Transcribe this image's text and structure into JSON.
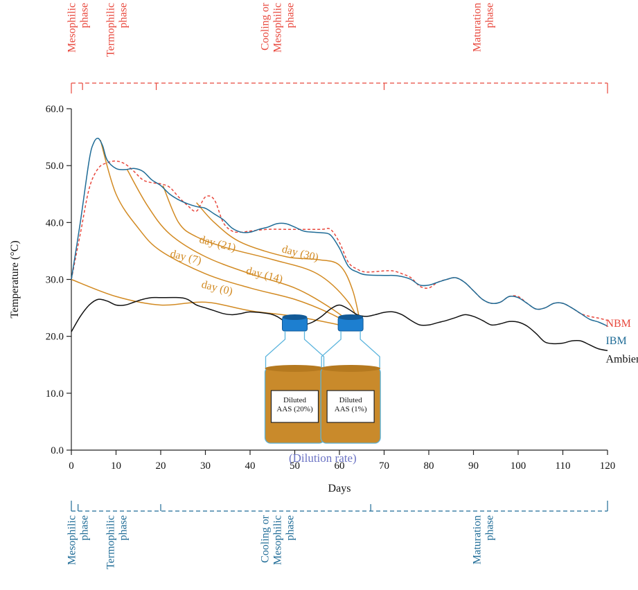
{
  "chart_data": {
    "type": "line",
    "xlabel": "Days",
    "ylabel": "Temperature (°C)",
    "xlim": [
      0,
      120
    ],
    "ylim": [
      0,
      60
    ],
    "x_ticks": [
      0,
      10,
      20,
      30,
      40,
      50,
      60,
      70,
      80,
      90,
      100,
      110,
      120
    ],
    "x_tick_labels": [
      "0",
      "10",
      "20",
      "30",
      "40",
      "50",
      "60",
      "70",
      "80",
      "90",
      "100",
      "110",
      "120"
    ],
    "y_ticks": [
      0,
      10,
      20,
      30,
      40,
      50,
      60
    ],
    "y_tick_labels": [
      "0.0",
      "10.0",
      "20.0",
      "30.0",
      "40.0",
      "50.0",
      "60.0"
    ],
    "grid": false,
    "series": [
      {
        "name": "NBM",
        "color": "#e8473c",
        "style": "dashed",
        "points": [
          [
            0,
            30
          ],
          [
            2,
            38
          ],
          [
            4,
            46
          ],
          [
            6,
            49.5
          ],
          [
            8,
            50.5
          ],
          [
            10,
            50.8
          ],
          [
            12,
            50.3
          ],
          [
            14,
            49
          ],
          [
            16,
            47.5
          ],
          [
            18,
            47
          ],
          [
            20,
            46.8
          ],
          [
            22,
            46.2
          ],
          [
            24,
            44.5
          ],
          [
            26,
            43
          ],
          [
            28,
            42
          ],
          [
            30,
            44.5
          ],
          [
            32,
            44
          ],
          [
            34,
            40
          ],
          [
            36,
            38.5
          ],
          [
            38,
            38.3
          ],
          [
            40,
            38.5
          ],
          [
            44,
            38.8
          ],
          [
            48,
            38.8
          ],
          [
            52,
            38.8
          ],
          [
            56,
            38.8
          ],
          [
            58,
            38.8
          ],
          [
            60,
            36.5
          ],
          [
            62,
            33
          ],
          [
            64,
            31.8
          ],
          [
            66,
            31.3
          ],
          [
            70,
            31.5
          ],
          [
            72,
            31.5
          ],
          [
            74,
            31
          ],
          [
            76,
            30.3
          ],
          [
            78,
            28.8
          ],
          [
            80,
            28.5
          ],
          [
            82,
            29.5
          ],
          [
            84,
            30
          ],
          [
            86,
            30.3
          ],
          [
            88,
            29.5
          ],
          [
            90,
            28
          ],
          [
            92,
            26.5
          ],
          [
            94,
            25.8
          ],
          [
            96,
            26
          ],
          [
            98,
            27
          ],
          [
            100,
            27
          ],
          [
            102,
            25.8
          ],
          [
            104,
            24.8
          ],
          [
            106,
            25
          ],
          [
            108,
            25.8
          ],
          [
            110,
            25.8
          ],
          [
            112,
            25
          ],
          [
            114,
            24
          ],
          [
            116,
            23.5
          ],
          [
            118,
            23.2
          ],
          [
            120,
            22.8
          ]
        ]
      },
      {
        "name": "IBM",
        "color": "#1e6b96",
        "style": "solid",
        "points": [
          [
            0,
            30
          ],
          [
            2,
            40
          ],
          [
            4,
            51
          ],
          [
            5,
            54
          ],
          [
            6,
            54.8
          ],
          [
            7,
            53.5
          ],
          [
            8,
            51
          ],
          [
            10,
            49.5
          ],
          [
            12,
            49.3
          ],
          [
            14,
            49.5
          ],
          [
            16,
            49
          ],
          [
            18,
            47.5
          ],
          [
            20,
            46.5
          ],
          [
            22,
            45
          ],
          [
            24,
            44
          ],
          [
            26,
            43.3
          ],
          [
            28,
            42.8
          ],
          [
            30,
            42.5
          ],
          [
            32,
            41.5
          ],
          [
            34,
            40.5
          ],
          [
            36,
            39
          ],
          [
            38,
            38.3
          ],
          [
            40,
            38.3
          ],
          [
            42,
            38.8
          ],
          [
            44,
            39.2
          ],
          [
            46,
            39.8
          ],
          [
            48,
            39.8
          ],
          [
            50,
            39.2
          ],
          [
            52,
            38.5
          ],
          [
            54,
            38.3
          ],
          [
            56,
            38.2
          ],
          [
            58,
            37.8
          ],
          [
            60,
            35.5
          ],
          [
            62,
            32.3
          ],
          [
            64,
            31.3
          ],
          [
            66,
            30.8
          ],
          [
            70,
            30.7
          ],
          [
            72,
            30.7
          ],
          [
            74,
            30.5
          ],
          [
            76,
            30
          ],
          [
            78,
            29
          ],
          [
            80,
            29
          ],
          [
            82,
            29.5
          ],
          [
            84,
            30
          ],
          [
            86,
            30.3
          ],
          [
            88,
            29.5
          ],
          [
            90,
            28
          ],
          [
            92,
            26.5
          ],
          [
            94,
            25.8
          ],
          [
            96,
            26
          ],
          [
            98,
            27
          ],
          [
            100,
            26.8
          ],
          [
            102,
            25.8
          ],
          [
            104,
            24.8
          ],
          [
            106,
            25
          ],
          [
            108,
            25.8
          ],
          [
            110,
            25.8
          ],
          [
            112,
            25
          ],
          [
            114,
            24
          ],
          [
            116,
            23
          ],
          [
            118,
            22.5
          ],
          [
            120,
            21.8
          ]
        ]
      },
      {
        "name": "Ambient",
        "color": "#111111",
        "style": "solid",
        "points": [
          [
            0,
            20.8
          ],
          [
            2,
            23.5
          ],
          [
            4,
            25.5
          ],
          [
            6,
            26.5
          ],
          [
            8,
            26.2
          ],
          [
            10,
            25.5
          ],
          [
            12,
            25.5
          ],
          [
            14,
            26
          ],
          [
            16,
            26.5
          ],
          [
            18,
            26.8
          ],
          [
            20,
            26.8
          ],
          [
            24,
            26.8
          ],
          [
            26,
            26.5
          ],
          [
            28,
            25.5
          ],
          [
            30,
            25
          ],
          [
            32,
            24.5
          ],
          [
            34,
            24
          ],
          [
            36,
            23.8
          ],
          [
            38,
            24
          ],
          [
            40,
            24.3
          ],
          [
            44,
            24
          ],
          [
            46,
            23.5
          ],
          [
            48,
            22.5
          ],
          [
            50,
            22
          ],
          [
            52,
            22
          ],
          [
            54,
            22.5
          ],
          [
            56,
            23.5
          ],
          [
            58,
            24.8
          ],
          [
            60,
            25.5
          ],
          [
            62,
            24.8
          ],
          [
            64,
            23.8
          ],
          [
            66,
            23.5
          ],
          [
            68,
            23.8
          ],
          [
            70,
            24.2
          ],
          [
            72,
            24.3
          ],
          [
            74,
            23.8
          ],
          [
            76,
            22.8
          ],
          [
            78,
            22
          ],
          [
            80,
            22
          ],
          [
            82,
            22.4
          ],
          [
            84,
            22.8
          ],
          [
            86,
            23.3
          ],
          [
            88,
            23.8
          ],
          [
            90,
            23.5
          ],
          [
            92,
            22.8
          ],
          [
            94,
            22
          ],
          [
            96,
            22.2
          ],
          [
            98,
            22.6
          ],
          [
            100,
            22.5
          ],
          [
            102,
            21.8
          ],
          [
            104,
            20.5
          ],
          [
            106,
            19
          ],
          [
            108,
            18.7
          ],
          [
            110,
            18.8
          ],
          [
            112,
            19.2
          ],
          [
            114,
            19.2
          ],
          [
            116,
            18.5
          ],
          [
            118,
            17.8
          ],
          [
            120,
            17.5
          ]
        ]
      }
    ],
    "sample_lines": {
      "color": "#d28a22",
      "target": [
        65,
        21
      ],
      "lines": [
        {
          "label": "day (0)",
          "points": [
            [
              0,
              30
            ],
            [
              10,
              27
            ],
            [
              20,
              25.5
            ],
            [
              30,
              26
            ],
            [
              40,
              24.5
            ],
            [
              50,
              23.5
            ],
            [
              60,
              22
            ],
            [
              65,
              21
            ]
          ],
          "label_at": [
            29,
            28.6
          ]
        },
        {
          "label": "day (7)",
          "points": [
            [
              6.5,
              54.5
            ],
            [
              10,
              45
            ],
            [
              15,
              39
            ],
            [
              20,
              35
            ],
            [
              30,
              31
            ],
            [
              40,
              28.5
            ],
            [
              50,
              26.5
            ],
            [
              58,
              24
            ],
            [
              65,
              21
            ]
          ],
          "label_at": [
            22,
            34
          ]
        },
        {
          "label": "day (14)",
          "points": [
            [
              12.5,
              49.3
            ],
            [
              17,
              43
            ],
            [
              22,
              38
            ],
            [
              30,
              34
            ],
            [
              40,
              31
            ],
            [
              50,
              28.5
            ],
            [
              58,
              25
            ],
            [
              65,
              21
            ]
          ],
          "label_at": [
            39,
            31
          ]
        },
        {
          "label": "day (21)",
          "points": [
            [
              20.5,
              46.5
            ],
            [
              24,
              40
            ],
            [
              28,
              37.5
            ],
            [
              35,
              35.5
            ],
            [
              45,
              33.5
            ],
            [
              55,
              31
            ],
            [
              62,
              26
            ],
            [
              65,
              21
            ]
          ],
          "label_at": [
            28.5,
            36.5
          ]
        },
        {
          "label": "day (30)",
          "points": [
            [
              28,
              43.5
            ],
            [
              32,
              40
            ],
            [
              38,
              36.5
            ],
            [
              48,
              34
            ],
            [
              55,
              33.5
            ],
            [
              60,
              32.5
            ],
            [
              63,
              28
            ],
            [
              65,
              21
            ]
          ],
          "label_at": [
            47,
            34.8
          ]
        }
      ]
    },
    "end_labels": [
      {
        "text": "NBM",
        "color": "#e8473c",
        "at": [
          121,
          22.3
        ]
      },
      {
        "text": "IBM",
        "color": "#1e6b96",
        "at": [
          121,
          19.2
        ]
      },
      {
        "text": "Ambient",
        "color": "#111111",
        "at": [
          121,
          16
        ]
      }
    ],
    "top_phases": {
      "color": "#e8473c",
      "boundaries": [
        0,
        2.5,
        19,
        70,
        120
      ],
      "labels": [
        {
          "text": [
            "Mesophilic",
            "phase"
          ],
          "center": 1.3
        },
        {
          "text": [
            "Termophilic",
            "phase"
          ],
          "center": 10
        },
        {
          "text": [
            "Cooling or",
            "Mesophilic",
            "phase"
          ],
          "center": 46
        },
        {
          "text": [
            "Maturation",
            "phase"
          ],
          "center": 92
        }
      ]
    },
    "bottom_phases": {
      "color": "#1e6b96",
      "boundaries": [
        0,
        1.5,
        20,
        67,
        120
      ],
      "labels": [
        {
          "text": [
            "Mesophilic",
            "phase"
          ],
          "center": 1.3
        },
        {
          "text": [
            "Termophilic",
            "phase"
          ],
          "center": 10
        },
        {
          "text": [
            "Cooling or",
            "Mesophilic",
            "phase"
          ],
          "center": 46
        },
        {
          "text": [
            "Maturation",
            "phase"
          ],
          "center": 92
        }
      ]
    },
    "bottles": [
      {
        "label": [
          "Diluted",
          "AAS (20%)"
        ],
        "center_x": 50
      },
      {
        "label": [
          "Diluted",
          "AAS (1%)"
        ],
        "center_x": 62.5
      }
    ],
    "bottles_caption": {
      "text": "(Dilution rate)",
      "color": "#6b73c4"
    },
    "bottle_colors": {
      "cap": "#1d7fd0",
      "cap_dark": "#125a97",
      "body": "#c98a2b",
      "outline": "#5ab4dd",
      "label_bg": "#ffffff"
    }
  }
}
